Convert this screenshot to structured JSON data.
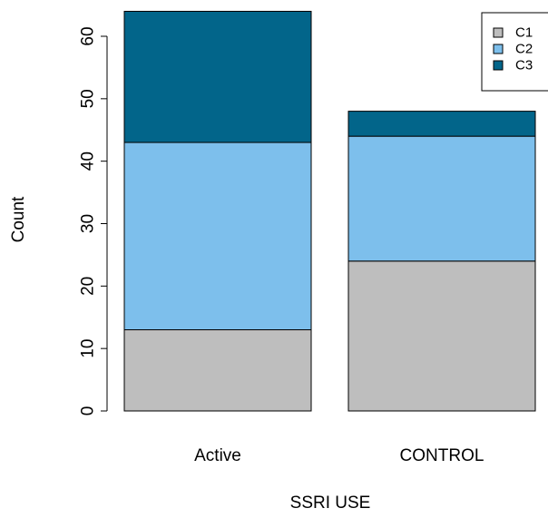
{
  "chart_data": {
    "type": "bar",
    "stacked": true,
    "categories": [
      "Active",
      "CONTROL"
    ],
    "series": [
      {
        "name": "C1",
        "values": [
          13,
          24
        ],
        "color": "#BEBEBE"
      },
      {
        "name": "C2",
        "values": [
          30,
          20
        ],
        "color": "#7DBFEC"
      },
      {
        "name": "C3",
        "values": [
          21,
          4
        ],
        "color": "#02658A"
      }
    ],
    "xlabel": "SSRI USE",
    "ylabel": "Count",
    "ylim": [
      0,
      64
    ],
    "yticks": [
      "0",
      "10",
      "20",
      "30",
      "40",
      "50",
      "60"
    ],
    "grid": false,
    "legend_position": "top-right"
  }
}
